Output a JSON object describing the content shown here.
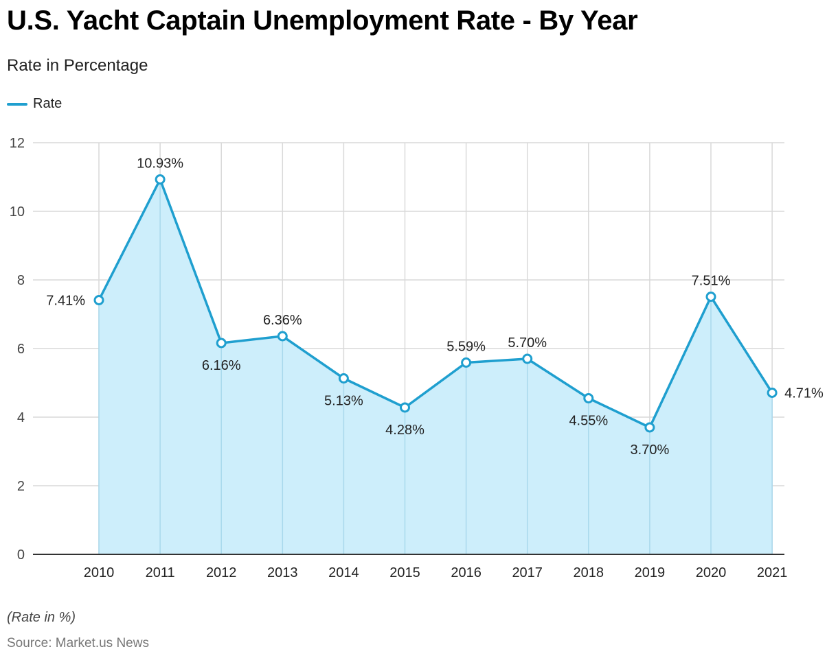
{
  "header": {
    "title": "U.S. Yacht Captain Unemployment Rate - By Year",
    "subtitle": "Rate in Percentage"
  },
  "footer": {
    "note": "(Rate in %)",
    "source": "Source: Market.us News"
  },
  "colors": {
    "line": "#1f9fcf",
    "fill": "#cdeefb",
    "grid": "#d9d9d9",
    "axis": "#333333"
  },
  "chart_data": {
    "type": "line",
    "title": "U.S. Yacht Captain Unemployment Rate - By Year",
    "subtitle": "Rate in Percentage",
    "xlabel": "",
    "ylabel": "",
    "categories": [
      "2010",
      "2011",
      "2012",
      "2013",
      "2014",
      "2015",
      "2016",
      "2017",
      "2018",
      "2019",
      "2020",
      "2021"
    ],
    "series": [
      {
        "name": "Rate",
        "values": [
          7.41,
          10.93,
          6.16,
          6.36,
          5.13,
          4.28,
          5.59,
          5.7,
          4.55,
          3.7,
          7.51,
          4.71
        ],
        "labels": [
          "7.41%",
          "10.93%",
          "6.16%",
          "6.36%",
          "5.13%",
          "4.28%",
          "5.59%",
          "5.70%",
          "4.55%",
          "3.70%",
          "7.51%",
          "4.71%"
        ],
        "label_positions": [
          "left",
          "above",
          "below",
          "above",
          "below",
          "below",
          "above",
          "above",
          "below",
          "below",
          "above",
          "right"
        ]
      }
    ],
    "ylim": [
      0,
      12
    ],
    "yticks": [
      0,
      2,
      4,
      6,
      8,
      10,
      12
    ],
    "ytick_labels": [
      "0",
      "2",
      "4",
      "6",
      "8",
      "10",
      "12"
    ],
    "grid": true,
    "legend": "top-left",
    "area_fill": true
  }
}
